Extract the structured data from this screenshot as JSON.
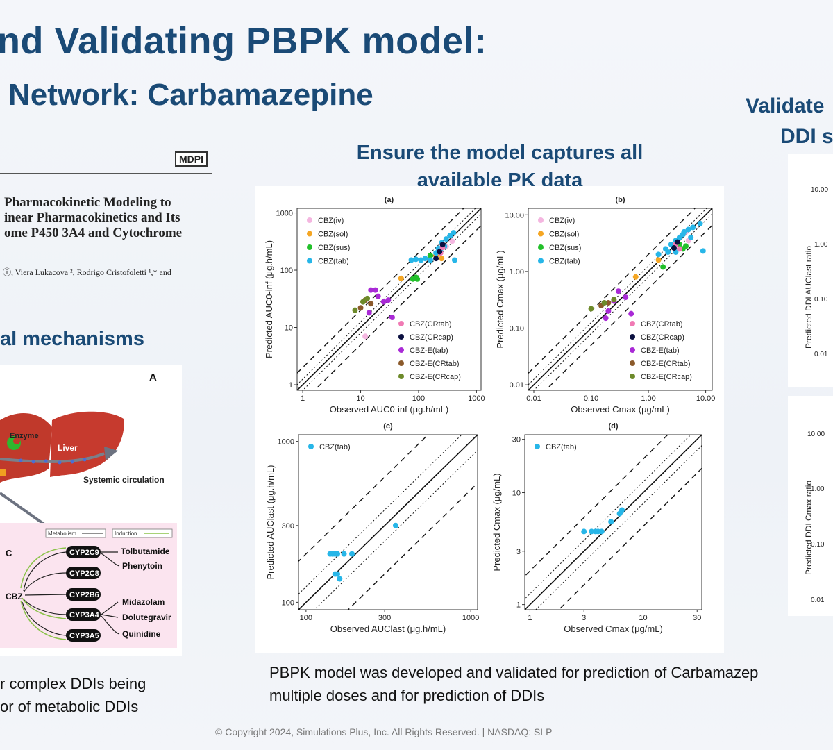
{
  "slide": {
    "title_line1": "nd Validating PBPK model:",
    "title_line2": "Network: Carbamazepine",
    "center_heading": "Ensure the model captures all available PK data",
    "right_heading_line1": "Validate",
    "right_heading_line2": "DDI s",
    "mechanisms_heading": "al mechanisms",
    "bottom_left_text": "r complex DDIs being\nor of metabolic DDIs",
    "bottom_mid_text": "PBPK model was developed and validated for prediction of Carbamazep\nmultiple doses and for prediction of DDIs",
    "footer": "© Copyright 2024, Simulations Plus, Inc. All Rights Reserved. | NASDAQ: SLP"
  },
  "paper": {
    "publisher": "MDPI",
    "title": "Pharmacokinetic Modeling to\ninear Pharmacokinetics and Its\nome P450 3A4 and Cytochrome",
    "authors": "ⓘ, Viera Lukacova ², Rodrigo Cristofoletti ¹,* and"
  },
  "diagram": {
    "panel_label_A": "A",
    "panel_label_C": "C",
    "enzyme": "Enzyme",
    "liver": "Liver",
    "systemic": "Systemic circulation",
    "legend_metabolism": "Metabolism",
    "legend_induction": "Induction",
    "center_node": "CBZ",
    "cyps": [
      "CYP2C9",
      "CYP2C8",
      "CYP2B6",
      "CYP3A4",
      "CYP3A5"
    ],
    "drugs": [
      "Tolbutamide",
      "Phenytoin",
      "Midazolam",
      "Dolutegravir",
      "Quinidine"
    ]
  },
  "colors": {
    "CBZ(iv)": "#f4b6e0",
    "CBZ(sol)": "#f5a623",
    "CBZ(sus)": "#22c02a",
    "CBZ(tab)": "#27b6e8",
    "CBZ(CRtab)": "#f07ab4",
    "CBZ(CRcap)": "#0b1040",
    "CBZ-E(tab)": "#a92ad6",
    "CBZ-E(CRtab)": "#8b5a2b",
    "CBZ-E(CRcap)": "#6d8a2a"
  },
  "right_panels": {
    "top_ticks": [
      "10.00",
      "1.00",
      "0.10",
      "0.01"
    ],
    "top_ylabel": "Predicted DDI AUClast ratio",
    "bottom_ticks": [
      "10.00",
      "1.00",
      "0.10",
      "0.01"
    ],
    "bottom_ylabel": "Predicted DDI Cmax ratio"
  },
  "chart_data": [
    {
      "panel": "(a)",
      "type": "scatter",
      "xlabel": "Observed AUC0-inf (μg.h/mL)",
      "ylabel": "Predicted AUC0-inf (μg.h/mL)",
      "xscale": "log",
      "yscale": "log",
      "xlim": [
        0.8,
        1200
      ],
      "ylim": [
        0.8,
        1200
      ],
      "xticks": [
        "1",
        "10",
        "100",
        "1000"
      ],
      "yticks": [
        "1",
        "10",
        "100",
        "1000"
      ],
      "legend_left": [
        "CBZ(iv)",
        "CBZ(sol)",
        "CBZ(sus)",
        "CBZ(tab)"
      ],
      "legend_right": [
        "CBZ(CRtab)",
        "CBZ(CRcap)",
        "CBZ-E(tab)",
        "CBZ-E(CRtab)",
        "CBZ-E(CRcap)"
      ],
      "series": [
        {
          "name": "CBZ(iv)",
          "points": [
            [
              12,
              7
            ],
            [
              380,
              320
            ],
            [
              300,
              260
            ]
          ]
        },
        {
          "name": "CBZ(sol)",
          "points": [
            [
              50,
              72
            ],
            [
              220,
              200
            ],
            [
              200,
              180
            ],
            [
              250,
              160
            ]
          ]
        },
        {
          "name": "CBZ(sus)",
          "points": [
            [
              80,
              70
            ],
            [
              90,
              75
            ],
            [
              95,
              70
            ],
            [
              160,
              180
            ]
          ]
        },
        {
          "name": "CBZ(tab)",
          "points": [
            [
              75,
              150
            ],
            [
              90,
              155
            ],
            [
              110,
              150
            ],
            [
              130,
              160
            ],
            [
              160,
              150
            ],
            [
              200,
              200
            ],
            [
              240,
              230
            ],
            [
              280,
              260
            ],
            [
              300,
              350
            ],
            [
              350,
              400
            ],
            [
              400,
              450
            ],
            [
              420,
              150
            ],
            [
              250,
              300
            ],
            [
              220,
              240
            ]
          ]
        },
        {
          "name": "CBZ(CRtab)",
          "points": [
            [
              240,
              200
            ],
            [
              260,
              250
            ]
          ]
        },
        {
          "name": "CBZ(CRcap)",
          "points": [
            [
              200,
              160
            ],
            [
              230,
              210
            ],
            [
              260,
              280
            ]
          ]
        },
        {
          "name": "CBZ-E(tab)",
          "points": [
            [
              15,
              45
            ],
            [
              18,
              45
            ],
            [
              20,
              35
            ],
            [
              30,
              30
            ],
            [
              35,
              15
            ],
            [
              14,
              18
            ],
            [
              25,
              28
            ]
          ]
        },
        {
          "name": "CBZ-E(CRtab)",
          "points": [
            [
              12,
              30
            ],
            [
              15,
              26
            ],
            [
              10,
              22
            ]
          ]
        },
        {
          "name": "CBZ-E(CRcap)",
          "points": [
            [
              8,
              20
            ],
            [
              11,
              28
            ],
            [
              13,
              32
            ]
          ]
        }
      ]
    },
    {
      "panel": "(b)",
      "type": "scatter",
      "xlabel": "Observed Cmax (μg/mL)",
      "ylabel": "Predicted Cmax (μg/mL)",
      "xscale": "log",
      "yscale": "log",
      "xlim": [
        0.008,
        13
      ],
      "ylim": [
        0.008,
        13
      ],
      "xticks": [
        "0.01",
        "0.10",
        "1.00",
        "10.00"
      ],
      "yticks": [
        "0.01",
        "0.10",
        "1.00",
        "10.00"
      ],
      "legend_left": [
        "CBZ(iv)",
        "CBZ(sol)",
        "CBZ(sus)",
        "CBZ(tab)"
      ],
      "legend_right": [
        "CBZ(CRtab)",
        "CBZ(CRcap)",
        "CBZ-E(tab)",
        "CBZ-E(CRtab)",
        "CBZ-E(CRcap)"
      ],
      "series": [
        {
          "name": "CBZ(iv)",
          "points": [
            [
              4.5,
              5
            ],
            [
              5,
              3.5
            ]
          ]
        },
        {
          "name": "CBZ(sol)",
          "points": [
            [
              0.6,
              0.8
            ],
            [
              1.5,
              1.6
            ],
            [
              3,
              3.5
            ]
          ]
        },
        {
          "name": "CBZ(sus)",
          "points": [
            [
              1.8,
              1.2
            ],
            [
              4,
              2.5
            ],
            [
              4.5,
              2.8
            ],
            [
              3.5,
              3
            ]
          ]
        },
        {
          "name": "CBZ(tab)",
          "points": [
            [
              1.5,
              2
            ],
            [
              2,
              2.5
            ],
            [
              2.5,
              3
            ],
            [
              3,
              3.5
            ],
            [
              3.5,
              4
            ],
            [
              4,
              4.5
            ],
            [
              5,
              5.5
            ],
            [
              6,
              6
            ],
            [
              8,
              7
            ],
            [
              9,
              2.3
            ],
            [
              2.2,
              2.2
            ],
            [
              3,
              2.2
            ],
            [
              4.2,
              5
            ],
            [
              5.5,
              4
            ]
          ]
        },
        {
          "name": "CBZ(CRtab)",
          "points": [
            [
              3,
              3
            ],
            [
              3.5,
              2.5
            ]
          ]
        },
        {
          "name": "CBZ(CRcap)",
          "points": [
            [
              2.8,
              2.6
            ],
            [
              3.2,
              3.3
            ]
          ]
        },
        {
          "name": "CBZ-E(tab)",
          "points": [
            [
              0.2,
              0.2
            ],
            [
              0.25,
              0.3
            ],
            [
              0.3,
              0.45
            ],
            [
              0.4,
              0.35
            ],
            [
              0.5,
              0.18
            ],
            [
              0.18,
              0.15
            ]
          ]
        },
        {
          "name": "CBZ-E(CRtab)",
          "points": [
            [
              0.15,
              0.25
            ],
            [
              0.2,
              0.28
            ]
          ]
        },
        {
          "name": "CBZ-E(CRcap)",
          "points": [
            [
              0.1,
              0.22
            ],
            [
              0.17,
              0.28
            ],
            [
              0.25,
              0.32
            ]
          ]
        }
      ]
    },
    {
      "panel": "(c)",
      "type": "scatter",
      "xlabel": "Observed AUClast (μg.h/mL)",
      "ylabel": "Predicted AUClast (μg.h/mL)",
      "xscale": "log",
      "yscale": "log",
      "xlim": [
        90,
        1100
      ],
      "ylim": [
        90,
        1100
      ],
      "xticks": [
        "100",
        "300",
        "1000"
      ],
      "yticks": [
        "100",
        "300",
        "1000"
      ],
      "legend_left": [
        "CBZ(tab)"
      ],
      "legend_right": [],
      "series": [
        {
          "name": "CBZ(tab)",
          "points": [
            [
              140,
              200
            ],
            [
              145,
              200
            ],
            [
              150,
              200
            ],
            [
              155,
              200
            ],
            [
              170,
              200
            ],
            [
              190,
              200
            ],
            [
              150,
              150
            ],
            [
              155,
              150
            ],
            [
              160,
              140
            ],
            [
              350,
              300
            ]
          ]
        }
      ]
    },
    {
      "panel": "(d)",
      "type": "scatter",
      "xlabel": "Observed Cmax (μg/mL)",
      "ylabel": "Predicted Cmax (μg/mL)",
      "xscale": "log",
      "yscale": "log",
      "xlim": [
        0.9,
        33
      ],
      "ylim": [
        0.9,
        33
      ],
      "xticks": [
        "1",
        "3",
        "10",
        "30"
      ],
      "yticks": [
        "1",
        "3",
        "10",
        "30"
      ],
      "legend_left": [
        "CBZ(tab)"
      ],
      "legend_right": [],
      "series": [
        {
          "name": "CBZ(tab)",
          "points": [
            [
              3,
              4.5
            ],
            [
              3.5,
              4.5
            ],
            [
              3.8,
              4.5
            ],
            [
              4,
              4.5
            ],
            [
              4.3,
              4.5
            ],
            [
              5.2,
              5.5
            ],
            [
              6.2,
              6.5
            ],
            [
              6.5,
              7
            ],
            [
              6.4,
              6.8
            ]
          ]
        }
      ]
    }
  ]
}
